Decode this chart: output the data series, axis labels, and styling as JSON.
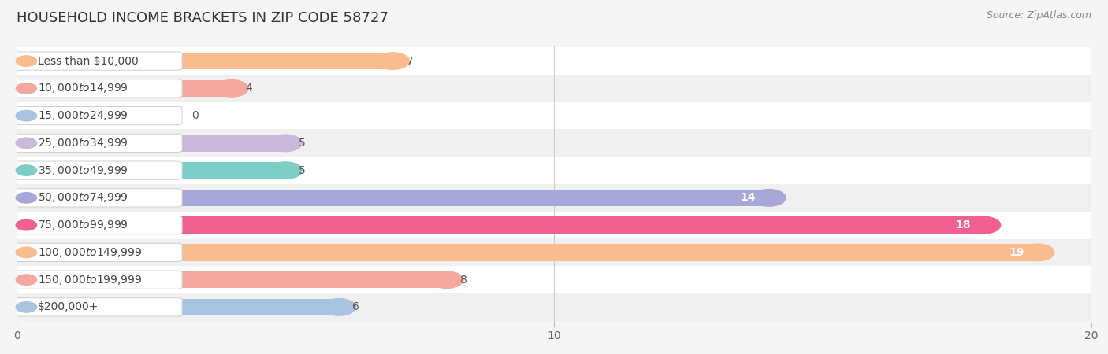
{
  "title": "HOUSEHOLD INCOME BRACKETS IN ZIP CODE 58727",
  "source": "Source: ZipAtlas.com",
  "categories": [
    "Less than $10,000",
    "$10,000 to $14,999",
    "$15,000 to $24,999",
    "$25,000 to $34,999",
    "$35,000 to $49,999",
    "$50,000 to $74,999",
    "$75,000 to $99,999",
    "$100,000 to $149,999",
    "$150,000 to $199,999",
    "$200,000+"
  ],
  "values": [
    7,
    4,
    0,
    5,
    5,
    14,
    18,
    19,
    8,
    6
  ],
  "bar_colors": [
    "#F9BC8F",
    "#F4A8A0",
    "#A8C4E0",
    "#C9B8D8",
    "#7ECEC8",
    "#A8A8D8",
    "#F06090",
    "#F9BC8F",
    "#F4A8A0",
    "#A8C4E0"
  ],
  "background_color": "#f5f5f5",
  "xlim": [
    0,
    20
  ],
  "xticks": [
    0,
    10,
    20
  ],
  "bar_height": 0.62,
  "label_fontsize": 10,
  "value_fontsize": 10,
  "title_fontsize": 13
}
